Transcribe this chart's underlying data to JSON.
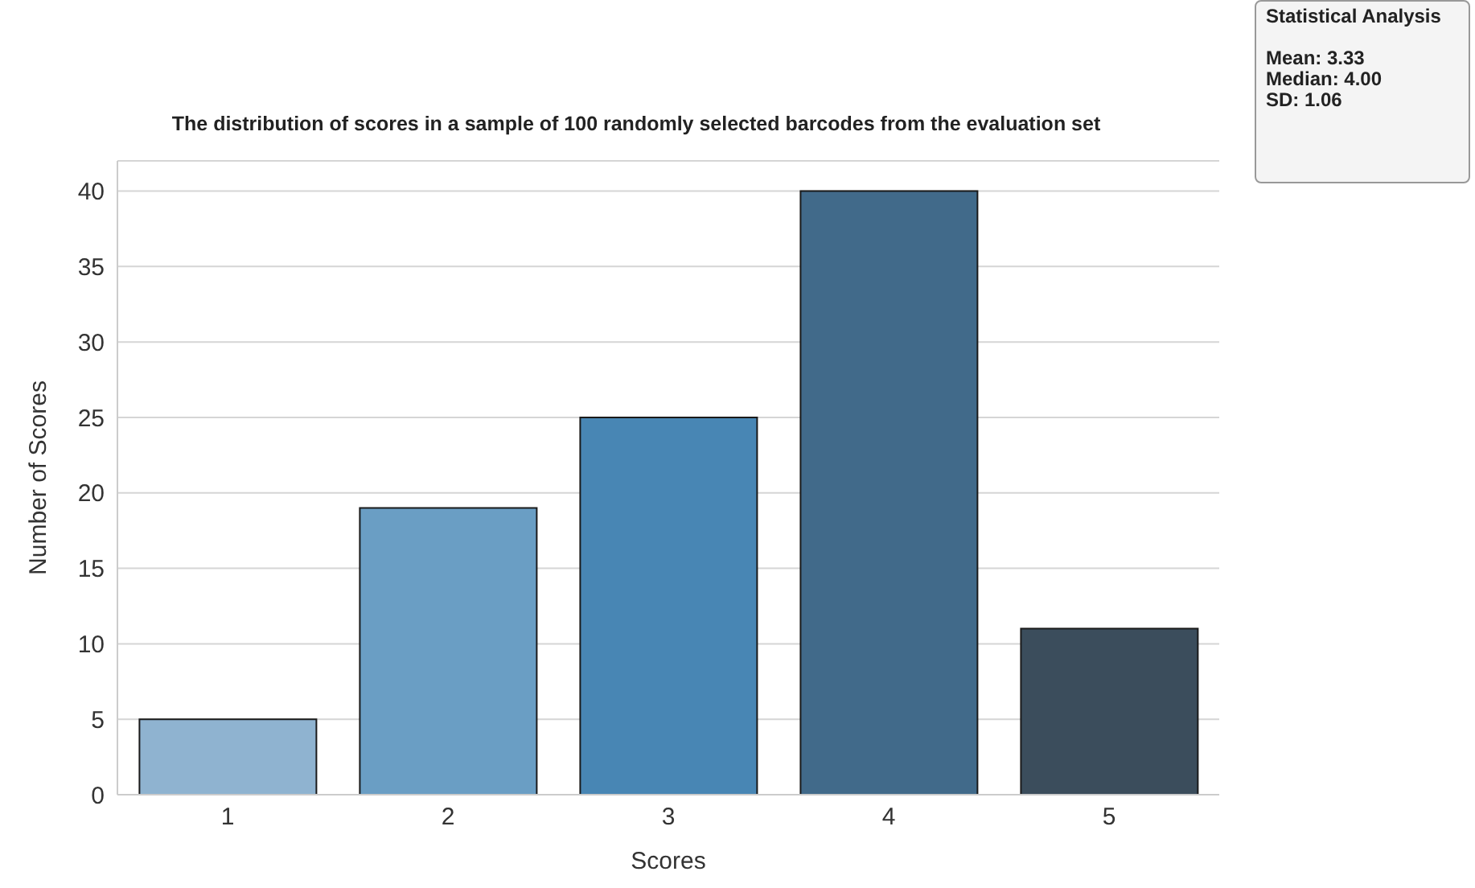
{
  "chart_data": {
    "type": "bar",
    "title": "The distribution of scores in a sample of 100 randomly selected barcodes from the evaluation set",
    "xlabel": "Scores",
    "ylabel": "Number of Scores",
    "categories": [
      "1",
      "2",
      "3",
      "4",
      "5"
    ],
    "values": [
      5,
      19,
      25,
      40,
      11
    ],
    "colors": [
      "#8fb3d0",
      "#6a9ec4",
      "#4886b4",
      "#416a8a",
      "#3b4d5c"
    ],
    "ylim": [
      0,
      42
    ],
    "yticks": [
      0,
      5,
      10,
      15,
      20,
      25,
      30,
      35,
      40
    ],
    "grid": "y",
    "annotations": [
      "Statistical Analysis",
      "Mean: 3.33",
      "Median: 4.00",
      "SD: 1.06"
    ]
  }
}
